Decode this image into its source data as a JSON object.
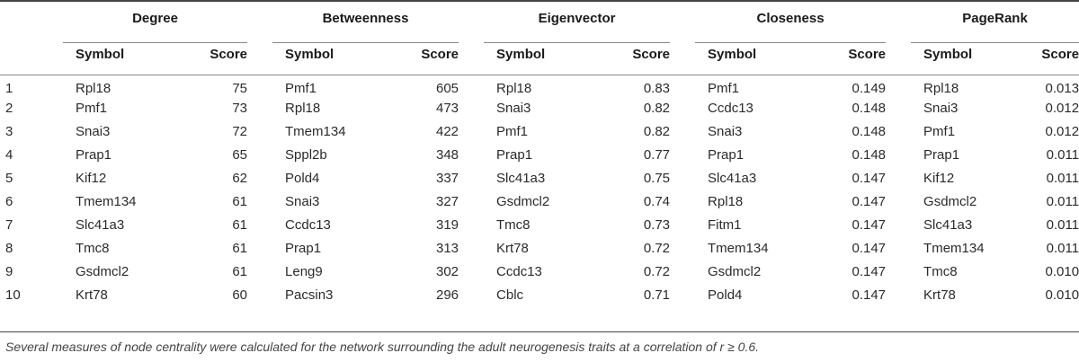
{
  "table": {
    "groups": [
      "Degree",
      "Betweenness",
      "Eigenvector",
      "Closeness",
      "PageRank"
    ],
    "symbol_header": "Symbol",
    "score_header": "Score",
    "rows": [
      {
        "rank": "1",
        "cells": [
          [
            "Rpl18",
            "75"
          ],
          [
            "Pmf1",
            "605"
          ],
          [
            "Rpl18",
            "0.83"
          ],
          [
            "Pmf1",
            "0.149"
          ],
          [
            "Rpl18",
            "0.013"
          ]
        ]
      },
      {
        "rank": "2",
        "cells": [
          [
            "Pmf1",
            "73"
          ],
          [
            "Rpl18",
            "473"
          ],
          [
            "Snai3",
            "0.82"
          ],
          [
            "Ccdc13",
            "0.148"
          ],
          [
            "Snai3",
            "0.012"
          ]
        ]
      },
      {
        "rank": "3",
        "cells": [
          [
            "Snai3",
            "72"
          ],
          [
            "Tmem134",
            "422"
          ],
          [
            "Pmf1",
            "0.82"
          ],
          [
            "Snai3",
            "0.148"
          ],
          [
            "Pmf1",
            "0.012"
          ]
        ]
      },
      {
        "rank": "4",
        "cells": [
          [
            "Prap1",
            "65"
          ],
          [
            "Sppl2b",
            "348"
          ],
          [
            "Prap1",
            "0.77"
          ],
          [
            "Prap1",
            "0.148"
          ],
          [
            "Prap1",
            "0.011"
          ]
        ]
      },
      {
        "rank": "5",
        "cells": [
          [
            "Kif12",
            "62"
          ],
          [
            "Pold4",
            "337"
          ],
          [
            "Slc41a3",
            "0.75"
          ],
          [
            "Slc41a3",
            "0.147"
          ],
          [
            "Kif12",
            "0.011"
          ]
        ]
      },
      {
        "rank": "6",
        "cells": [
          [
            "Tmem134",
            "61"
          ],
          [
            "Snai3",
            "327"
          ],
          [
            "Gsdmcl2",
            "0.74"
          ],
          [
            "Rpl18",
            "0.147"
          ],
          [
            "Gsdmcl2",
            "0.011"
          ]
        ]
      },
      {
        "rank": "7",
        "cells": [
          [
            "Slc41a3",
            "61"
          ],
          [
            "Ccdc13",
            "319"
          ],
          [
            "Tmc8",
            "0.73"
          ],
          [
            "Fitm1",
            "0.147"
          ],
          [
            "Slc41a3",
            "0.011"
          ]
        ]
      },
      {
        "rank": "8",
        "cells": [
          [
            "Tmc8",
            "61"
          ],
          [
            "Prap1",
            "313"
          ],
          [
            "Krt78",
            "0.72"
          ],
          [
            "Tmem134",
            "0.147"
          ],
          [
            "Tmem134",
            "0.011"
          ]
        ]
      },
      {
        "rank": "9",
        "cells": [
          [
            "Gsdmcl2",
            "61"
          ],
          [
            "Leng9",
            "302"
          ],
          [
            "Ccdc13",
            "0.72"
          ],
          [
            "Gsdmcl2",
            "0.147"
          ],
          [
            "Tmc8",
            "0.010"
          ]
        ]
      },
      {
        "rank": "10",
        "cells": [
          [
            "Krt78",
            "60"
          ],
          [
            "Pacsin3",
            "296"
          ],
          [
            "Cblc",
            "0.71"
          ],
          [
            "Pold4",
            "0.147"
          ],
          [
            "Krt78",
            "0.010"
          ]
        ]
      }
    ]
  },
  "caption": "Several measures of node centrality were calculated for the network surrounding the adult neurogenesis traits at a correlation of r ≥ 0.6."
}
